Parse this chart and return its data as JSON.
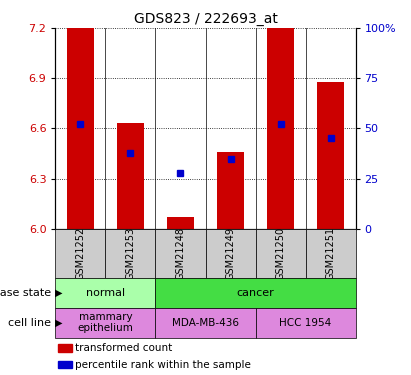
{
  "title": "GDS823 / 222693_at",
  "samples": [
    "GSM21252",
    "GSM21253",
    "GSM21248",
    "GSM21249",
    "GSM21250",
    "GSM21251"
  ],
  "transformed_counts": [
    7.2,
    6.63,
    6.07,
    6.46,
    7.2,
    6.88
  ],
  "percentile_ranks": [
    52,
    38,
    28,
    35,
    52,
    45
  ],
  "ylim_left": [
    6.0,
    7.2
  ],
  "ylim_right": [
    0,
    100
  ],
  "yticks_left": [
    6.0,
    6.3,
    6.6,
    6.9,
    7.2
  ],
  "yticks_right": [
    0,
    25,
    50,
    75,
    100
  ],
  "bar_color": "#cc0000",
  "dot_color": "#0000cc",
  "bar_width": 0.55,
  "disease_state_groups": [
    {
      "label": "normal",
      "cols": [
        0,
        1
      ],
      "color": "#aaffaa"
    },
    {
      "label": "cancer",
      "cols": [
        2,
        3,
        4,
        5
      ],
      "color": "#44dd44"
    }
  ],
  "cell_line_groups": [
    {
      "label": "mammary\nepithelium",
      "cols": [
        0,
        1
      ],
      "color": "#dd88dd"
    },
    {
      "label": "MDA-MB-436",
      "cols": [
        2,
        3
      ],
      "color": "#dd88dd"
    },
    {
      "label": "HCC 1954",
      "cols": [
        4,
        5
      ],
      "color": "#dd88dd"
    }
  ],
  "legend_items": [
    {
      "color": "#cc0000",
      "label": "transformed count"
    },
    {
      "color": "#0000cc",
      "label": "percentile rank within the sample"
    }
  ],
  "label_disease": "disease state",
  "label_cellline": "cell line",
  "tick_label_color_left": "#cc0000",
  "tick_label_color_right": "#0000cc",
  "title_fontsize": 10,
  "axis_fontsize": 8,
  "tick_fontsize": 8,
  "sample_fontsize": 7,
  "label_fontsize": 8,
  "legend_fontsize": 7.5
}
